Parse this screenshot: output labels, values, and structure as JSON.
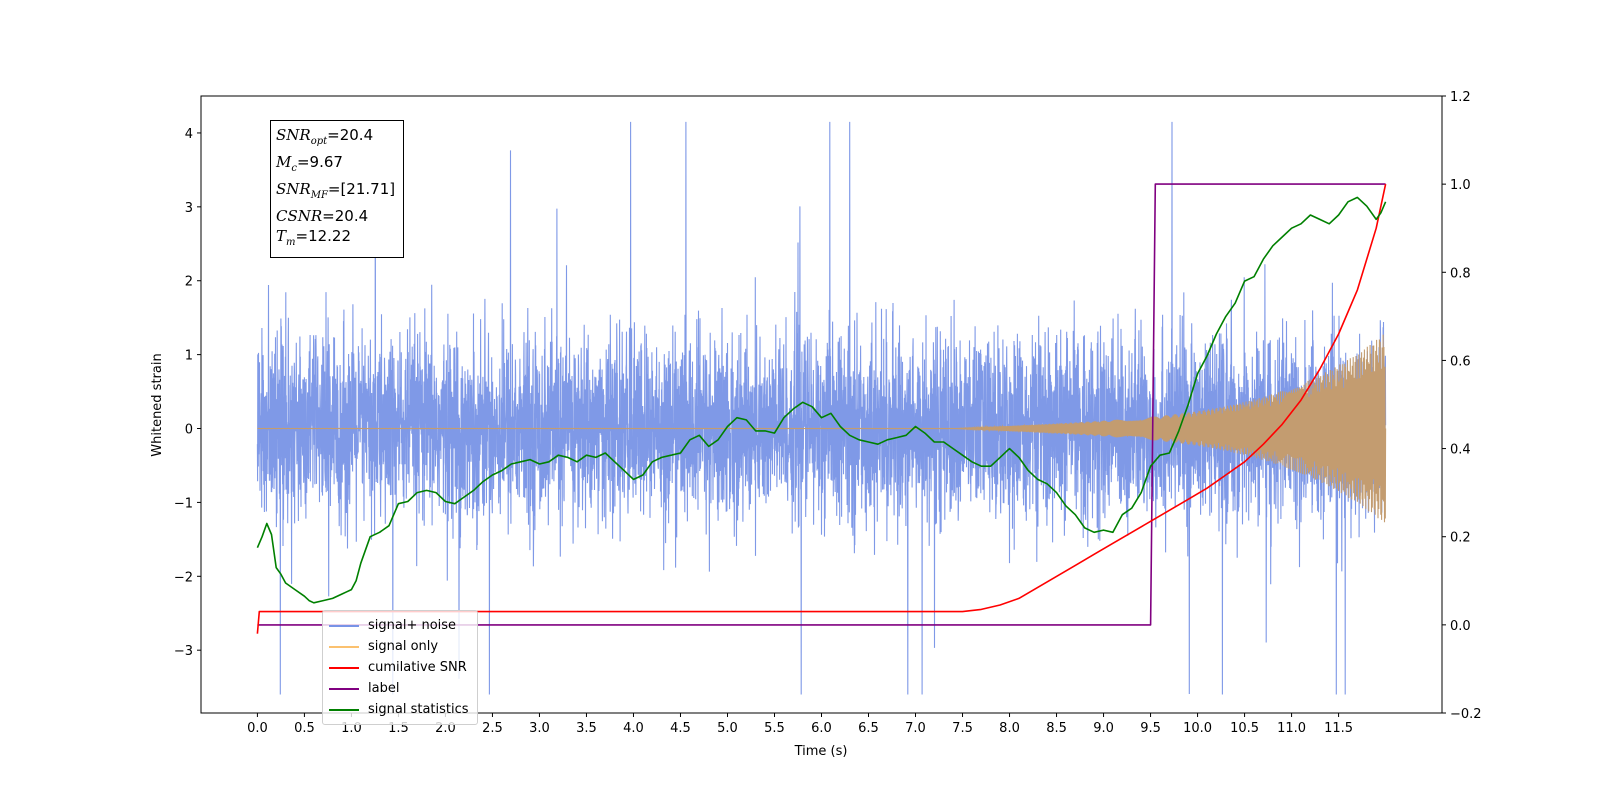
{
  "chart_data": {
    "type": "line",
    "xlabel": "Time (s)",
    "ylabel": "Whitened strain",
    "xlim": [
      -0.6,
      12.6
    ],
    "ylim_left": [
      -3.85,
      4.5
    ],
    "ylim_right": [
      -0.2,
      1.2
    ],
    "x_ticks": [
      "0.0",
      "0.5",
      "1.0",
      "1.5",
      "2.0",
      "2.5",
      "3.0",
      "3.5",
      "4.0",
      "4.5",
      "5.0",
      "5.5",
      "6.0",
      "6.5",
      "7.0",
      "7.5",
      "8.0",
      "8.5",
      "9.0",
      "9.5",
      "10.0",
      "10.5",
      "11.0",
      "11.5"
    ],
    "y_ticks_left": [
      -3,
      -2,
      -1,
      0,
      1,
      2,
      3,
      4
    ],
    "y_ticks_right": [
      "−0.2",
      "0.0",
      "0.2",
      "0.4",
      "0.6",
      "0.8",
      "1.0",
      "1.2"
    ],
    "grid": false,
    "legend_placement": "lower-left",
    "annotation": {
      "lines": [
        {
          "sym": "SNR",
          "sub": "opt",
          "val": "=20.4"
        },
        {
          "sym": "M",
          "sub": "c",
          "val": "=9.67"
        },
        {
          "sym": "SNR",
          "sub": "MF",
          "val": "=[21.71]"
        },
        {
          "sym": "CSNR",
          "sub": "",
          "val": "=20.4"
        },
        {
          "sym": "T",
          "sub": "m",
          "val": "=12.22"
        }
      ]
    },
    "series": [
      {
        "name": "signal+ noise",
        "color": "#7893e6",
        "axis": "left",
        "description": "white noise, amplitude about ±2.5 (peaks to ±4.1) from 0.0 to 12.0 s"
      },
      {
        "name": "signal only",
        "color": "#c39c70",
        "axis": "left",
        "description": "chirp growing from 0 near 7.5 s to about ±1.3 at 12.0 s"
      },
      {
        "name": "cumilative SNR",
        "color": "#ff0000",
        "axis": "right",
        "x": [
          0.0,
          0.02,
          7.5,
          7.7,
          7.9,
          8.1,
          8.3,
          8.5,
          8.7,
          8.9,
          9.1,
          9.3,
          9.5,
          9.7,
          9.9,
          10.1,
          10.3,
          10.5,
          10.7,
          10.9,
          11.1,
          11.3,
          11.5,
          11.7,
          11.9,
          12.0
        ],
        "values": [
          -0.02,
          0.03,
          0.03,
          0.035,
          0.045,
          0.06,
          0.085,
          0.11,
          0.135,
          0.16,
          0.185,
          0.21,
          0.235,
          0.26,
          0.285,
          0.31,
          0.34,
          0.37,
          0.41,
          0.455,
          0.51,
          0.58,
          0.66,
          0.76,
          0.9,
          1.0
        ]
      },
      {
        "name": "label",
        "color": "#800080",
        "axis": "right",
        "x": [
          0.0,
          9.5,
          9.55,
          12.0
        ],
        "values": [
          0.0,
          0.0,
          1.0,
          1.0
        ]
      },
      {
        "name": "signal statistics",
        "color": "#008000",
        "axis": "right",
        "x": [
          0.0,
          0.05,
          0.1,
          0.15,
          0.2,
          0.25,
          0.3,
          0.4,
          0.5,
          0.55,
          0.6,
          0.7,
          0.8,
          0.9,
          0.95,
          1.0,
          1.05,
          1.1,
          1.2,
          1.3,
          1.4,
          1.5,
          1.6,
          1.7,
          1.8,
          1.9,
          2.0,
          2.1,
          2.2,
          2.3,
          2.4,
          2.5,
          2.6,
          2.7,
          2.8,
          2.9,
          3.0,
          3.1,
          3.2,
          3.3,
          3.4,
          3.5,
          3.6,
          3.7,
          3.8,
          3.9,
          4.0,
          4.1,
          4.2,
          4.3,
          4.4,
          4.5,
          4.6,
          4.7,
          4.8,
          4.9,
          5.0,
          5.1,
          5.2,
          5.3,
          5.4,
          5.5,
          5.6,
          5.7,
          5.8,
          5.9,
          6.0,
          6.1,
          6.2,
          6.3,
          6.4,
          6.5,
          6.6,
          6.7,
          6.8,
          6.9,
          7.0,
          7.1,
          7.2,
          7.3,
          7.4,
          7.5,
          7.6,
          7.7,
          7.8,
          7.9,
          8.0,
          8.1,
          8.2,
          8.3,
          8.4,
          8.5,
          8.6,
          8.7,
          8.8,
          8.9,
          9.0,
          9.1,
          9.2,
          9.3,
          9.4,
          9.5,
          9.6,
          9.7,
          9.8,
          9.9,
          10.0,
          10.1,
          10.2,
          10.3,
          10.4,
          10.5,
          10.6,
          10.7,
          10.8,
          10.9,
          11.0,
          11.1,
          11.2,
          11.3,
          11.4,
          11.5,
          11.6,
          11.7,
          11.8,
          11.9,
          11.95,
          12.0
        ],
        "values": [
          0.175,
          0.2,
          0.23,
          0.205,
          0.13,
          0.115,
          0.095,
          0.08,
          0.065,
          0.055,
          0.05,
          0.055,
          0.06,
          0.07,
          0.075,
          0.08,
          0.1,
          0.14,
          0.2,
          0.21,
          0.225,
          0.275,
          0.28,
          0.3,
          0.305,
          0.3,
          0.28,
          0.275,
          0.29,
          0.305,
          0.325,
          0.34,
          0.35,
          0.365,
          0.37,
          0.375,
          0.365,
          0.37,
          0.385,
          0.38,
          0.37,
          0.385,
          0.38,
          0.39,
          0.37,
          0.35,
          0.33,
          0.34,
          0.37,
          0.38,
          0.385,
          0.39,
          0.42,
          0.43,
          0.405,
          0.42,
          0.45,
          0.47,
          0.465,
          0.44,
          0.44,
          0.435,
          0.47,
          0.49,
          0.505,
          0.495,
          0.47,
          0.48,
          0.45,
          0.43,
          0.42,
          0.415,
          0.41,
          0.42,
          0.425,
          0.43,
          0.45,
          0.435,
          0.415,
          0.415,
          0.4,
          0.385,
          0.37,
          0.36,
          0.36,
          0.38,
          0.4,
          0.38,
          0.35,
          0.33,
          0.32,
          0.3,
          0.27,
          0.25,
          0.22,
          0.21,
          0.215,
          0.21,
          0.25,
          0.265,
          0.3,
          0.36,
          0.385,
          0.39,
          0.44,
          0.5,
          0.57,
          0.61,
          0.66,
          0.7,
          0.73,
          0.78,
          0.79,
          0.83,
          0.86,
          0.88,
          0.9,
          0.91,
          0.93,
          0.92,
          0.91,
          0.93,
          0.96,
          0.97,
          0.95,
          0.92,
          0.935,
          0.96
        ]
      }
    ]
  }
}
